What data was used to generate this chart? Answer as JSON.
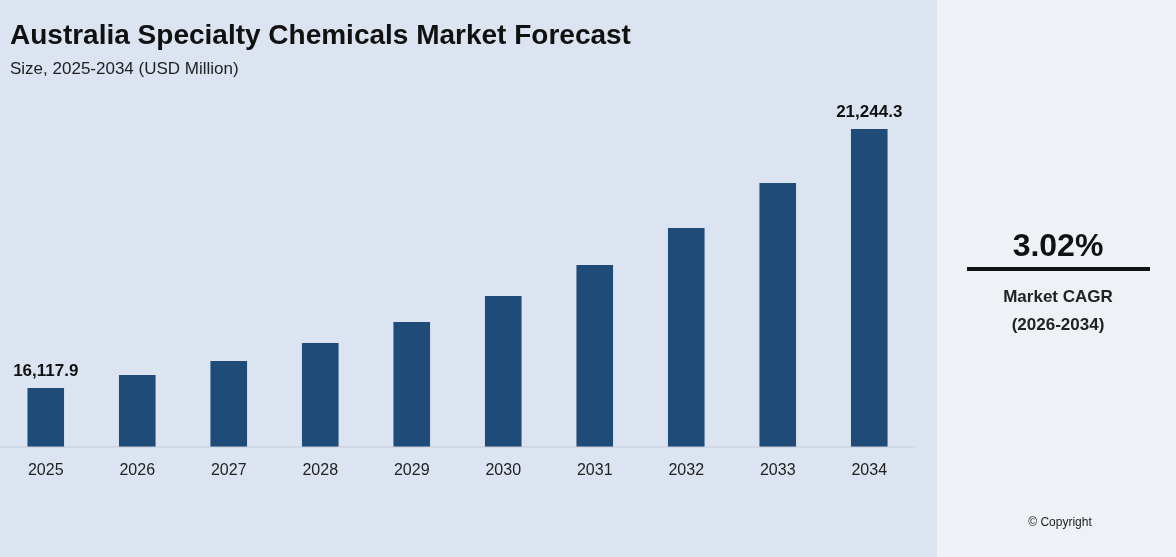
{
  "chart_data": {
    "type": "bar",
    "title": "Australia Specialty Chemicals Market Forecast",
    "subtitle": "Size, 2025-2034 (USD Million)",
    "categories": [
      "2025",
      "2026",
      "2027",
      "2028",
      "2029",
      "2030",
      "2031",
      "2032",
      "2033",
      "2034"
    ],
    "values": [
      16117.9,
      16375,
      16652,
      17009,
      17424,
      17939,
      18552,
      19285,
      20175,
      21244.3
    ],
    "ylim": [
      14950,
      21244.3
    ],
    "value_labels": [
      "16,117.9",
      null,
      null,
      null,
      null,
      null,
      null,
      null,
      null,
      "21,244.3"
    ],
    "color": "#1f4b78",
    "grid": false,
    "annotations": [
      "3.02%",
      "Market CAGR",
      "(2026-2034)",
      "© Copyright"
    ]
  }
}
